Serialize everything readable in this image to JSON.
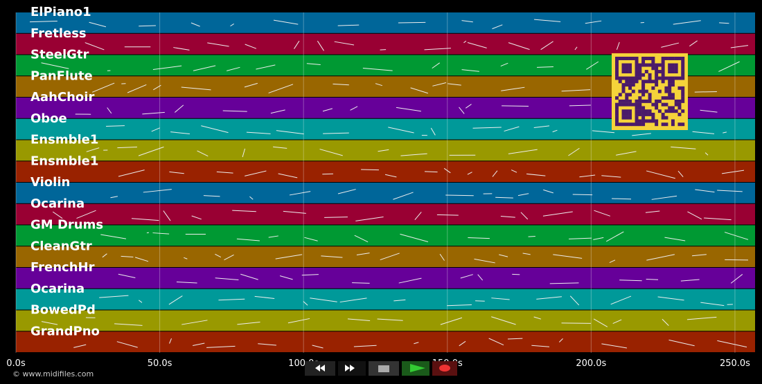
{
  "tracks": [
    {
      "name": "ElPiano1",
      "color": "#006699"
    },
    {
      "name": "Fretless",
      "color": "#990033"
    },
    {
      "name": "SteelGtr",
      "color": "#009933"
    },
    {
      "name": "PanFlute",
      "color": "#996600"
    },
    {
      "name": "AahChoir",
      "color": "#660099"
    },
    {
      "name": "Oboe",
      "color": "#009999"
    },
    {
      "name": "Ensmble1",
      "color": "#999900"
    },
    {
      "name": "Ensmble1",
      "color": "#992200"
    },
    {
      "name": "Violin",
      "color": "#006699"
    },
    {
      "name": "Ocarina",
      "color": "#990033"
    },
    {
      "name": "GM Drums",
      "color": "#009933"
    },
    {
      "name": "CleanGtr",
      "color": "#996600"
    },
    {
      "name": "FrenchHr",
      "color": "#660099"
    },
    {
      "name": "Ocarina",
      "color": "#009999"
    },
    {
      "name": "BowedPd",
      "color": "#999900"
    },
    {
      "name": "GrandPno",
      "color": "#992200"
    }
  ],
  "time_axis": {
    "xlim": [
      0,
      257
    ],
    "ticks": [
      {
        "value": 0,
        "label": "0.0s"
      },
      {
        "value": 50,
        "label": "50.0s"
      },
      {
        "value": 100,
        "label": "100.0s"
      },
      {
        "value": 150,
        "label": "150.0s"
      },
      {
        "value": 200,
        "label": "200.0s"
      },
      {
        "value": 250,
        "label": "250.0s"
      }
    ]
  },
  "footer": {
    "copyright": "© www.midifiles.com"
  }
}
